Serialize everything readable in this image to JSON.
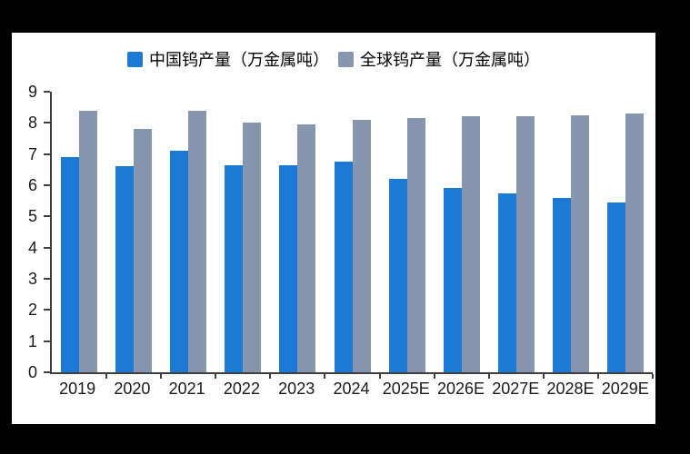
{
  "page": {
    "background_color": "#000000",
    "panel_background_color": "#ffffff",
    "axis_color": "#3f3f3f",
    "text_color": "#1a1a1a"
  },
  "legend": {
    "items": [
      {
        "label": "中国钨产量（万金属吨）",
        "color": "#1b7ad3"
      },
      {
        "label": "全球钨产量（万金属吨）",
        "color": "#8596ae"
      }
    ]
  },
  "chart_data": {
    "type": "bar",
    "title": "",
    "xlabel": "",
    "ylabel": "",
    "categories": [
      "2019",
      "2020",
      "2021",
      "2022",
      "2023",
      "2024",
      "2025E",
      "2026E",
      "2027E",
      "2028E",
      "2029E"
    ],
    "series": [
      {
        "name": "中国钨产量（万金属吨）",
        "key": "china",
        "color": "#1b7ad3",
        "values": [
          6.9,
          6.6,
          7.1,
          6.65,
          6.65,
          6.75,
          6.2,
          5.9,
          5.75,
          5.6,
          5.45
        ]
      },
      {
        "name": "全球钨产量（万金属吨）",
        "key": "global",
        "color": "#8596ae",
        "values": [
          8.4,
          7.8,
          8.4,
          8.0,
          7.95,
          8.1,
          8.15,
          8.2,
          8.2,
          8.25,
          8.3
        ]
      }
    ],
    "ylim": [
      0,
      9
    ],
    "ytick_step": 1,
    "grid": false,
    "legend_position": "top"
  }
}
